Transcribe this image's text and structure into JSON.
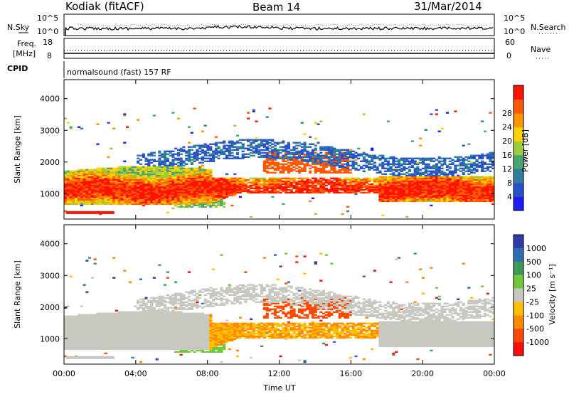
{
  "header": {
    "station": "Kodiak (fitACF)",
    "beam": "Beam 14",
    "date": "31/Mar/2014"
  },
  "strips": {
    "nsky": {
      "label": "N.Sky",
      "ytick_top": "10^5",
      "ytick_bottom": "10^0",
      "right_label": "N.Search",
      "right_tick_top": "10^5",
      "right_tick_bottom": "10^0"
    },
    "freq": {
      "label_line1": "Freq.",
      "label_line2": "[MHz]",
      "ytick_top": "18",
      "ytick_bottom": "8",
      "right_label": "Nave",
      "right_tick_top": "60",
      "right_tick_bottom": "0"
    },
    "cpid": {
      "label": "CPID",
      "value": "normalsound (fast) 157 RF"
    }
  },
  "chart_data": [
    {
      "type": "heatmap",
      "panel": "power",
      "ylabel": "Slant Range [km]",
      "yticks": [
        "1000",
        "2000",
        "3000",
        "4000"
      ],
      "ylim": [
        200,
        4600
      ],
      "xlim": [
        0,
        24
      ],
      "colorbar_label": "Power [dB]",
      "colorbar_ticks": [
        "4",
        "8",
        "12",
        "16",
        "20",
        "24",
        "28"
      ],
      "colors": [
        "#1c1cff",
        "#2a52c8",
        "#2f7e9e",
        "#4aa572",
        "#9ccd3c",
        "#ffd200",
        "#ff9600",
        "#ff5a00",
        "#ff1400"
      ]
    },
    {
      "type": "heatmap",
      "panel": "velocity",
      "ylabel": "Slant Range [km]",
      "yticks": [
        "1000",
        "2000",
        "3000",
        "4000"
      ],
      "ylim": [
        200,
        4600
      ],
      "xlim": [
        0,
        24
      ],
      "xlabel": "Time UT",
      "xticks": [
        "00:00",
        "04:00",
        "08:00",
        "12:00",
        "16:00",
        "20:00",
        "00:00"
      ],
      "colorbar_label": "Velocity [m s⁻¹]",
      "colorbar_ticks": [
        "1000",
        "500",
        "100",
        "25",
        "-25",
        "-100",
        "-500",
        "-1000"
      ],
      "colors": [
        "#2b3ea8",
        "#2f6eb4",
        "#3f9a56",
        "#72c83a",
        "#c8c8c0",
        "#ffc000",
        "#ff8a00",
        "#ff4a00",
        "#ff0d0d"
      ]
    }
  ]
}
